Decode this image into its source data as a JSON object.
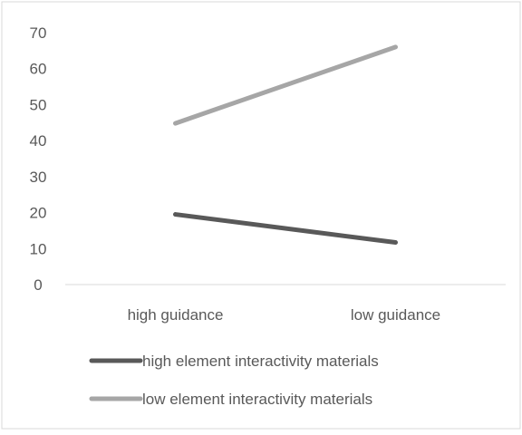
{
  "chart_data": {
    "type": "line",
    "title": "",
    "xlabel": "",
    "ylabel": "",
    "categories": [
      "high guidance",
      "low guidance"
    ],
    "ylim": [
      0,
      70
    ],
    "yticks": [
      0,
      10,
      20,
      30,
      40,
      50,
      60,
      70
    ],
    "grid": false,
    "legend_position": "bottom",
    "series": [
      {
        "name": "high element interactivity materials",
        "values": [
          19.5,
          11.7
        ],
        "color": "#595959"
      },
      {
        "name": "low element interactivity materials",
        "values": [
          44.8,
          66.0
        ],
        "color": "#a6a6a6"
      }
    ]
  }
}
